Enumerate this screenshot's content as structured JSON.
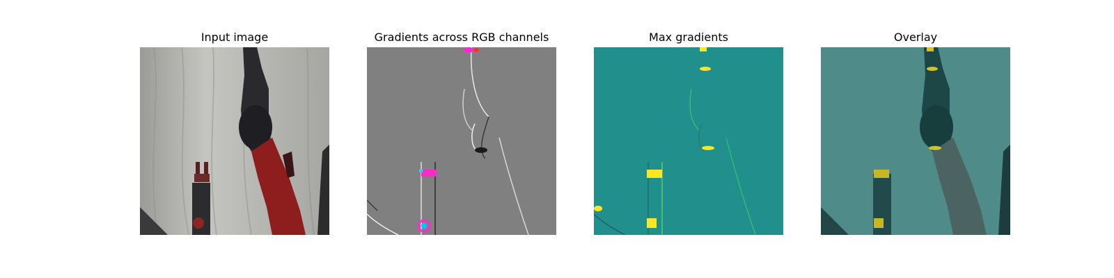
{
  "figure": {
    "panels": [
      {
        "title": "Input image",
        "image": "robot arm and gripper in front of white curtain"
      },
      {
        "title": "Gradients across RGB channels",
        "image": "gray gradient map with colored edge highlights"
      },
      {
        "title": "Max gradients",
        "image": "teal gradient magnitude map with yellow highlights"
      },
      {
        "title": "Overlay",
        "image": "teal overlay of gradient map on input image"
      }
    ]
  },
  "colors": {
    "curtain": "#b7b7b4",
    "arm_dark": "#2a2a2e",
    "arm_red": "#8e1e1e",
    "grad_gray": "#808080",
    "teal": "#21908d",
    "yellow": "#fde725",
    "overlay_teal": "#3f8581"
  }
}
